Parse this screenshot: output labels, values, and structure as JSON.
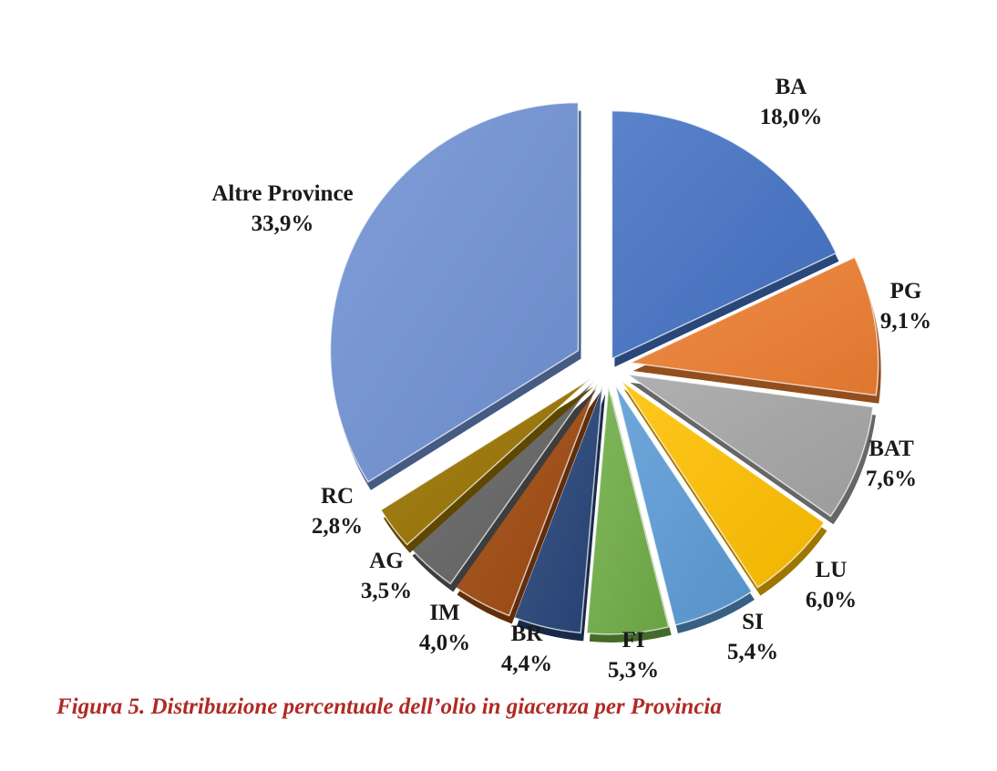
{
  "chart_data": {
    "type": "pie",
    "title": "",
    "slices": [
      {
        "label": "BA",
        "value": 18.0,
        "value_text": "18,0%",
        "color": "#4472c4"
      },
      {
        "label": "PG",
        "value": 9.1,
        "value_text": "9,1%",
        "color": "#ed7d31"
      },
      {
        "label": "BAT",
        "value": 7.6,
        "value_text": "7,6%",
        "color": "#a5a5a5"
      },
      {
        "label": "LU",
        "value": 6.0,
        "value_text": "6,0%",
        "color": "#ffc000"
      },
      {
        "label": "SI",
        "value": 5.4,
        "value_text": "5,4%",
        "color": "#5b9bd5"
      },
      {
        "label": "FI",
        "value": 5.3,
        "value_text": "5,3%",
        "color": "#70ad47"
      },
      {
        "label": "BR",
        "value": 4.4,
        "value_text": "4,4%",
        "color": "#264478"
      },
      {
        "label": "IM",
        "value": 4.0,
        "value_text": "4,0%",
        "color": "#9e480e"
      },
      {
        "label": "AG",
        "value": 3.5,
        "value_text": "3,5%",
        "color": "#636363"
      },
      {
        "label": "RC",
        "value": 2.8,
        "value_text": "2,8%",
        "color": "#997300"
      },
      {
        "label": "Altre Province",
        "value": 33.9,
        "value_text": "33,9%",
        "color": "#7092d4"
      }
    ],
    "exploded": true,
    "shading": "3d-bevel"
  },
  "caption": "Figura 5. Distribuzione percentuale dell’olio in giacenza per Provincia"
}
